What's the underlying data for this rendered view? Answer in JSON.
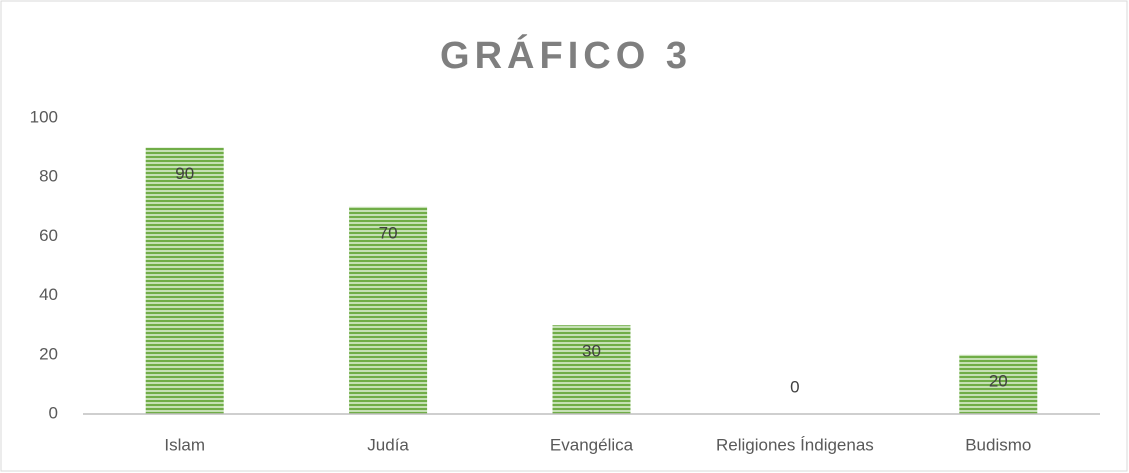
{
  "chart_data": {
    "type": "bar",
    "title": "GRÁFICO 3",
    "categories": [
      "Islam",
      "Judía",
      "Evangélica",
      "Religiones Índigenas",
      "Budismo"
    ],
    "values": [
      90,
      70,
      30,
      0,
      20
    ],
    "color": "#70ad47",
    "ylim": [
      0,
      100
    ],
    "yticks": [
      0,
      20,
      40,
      60,
      80,
      100
    ],
    "grid": false
  }
}
